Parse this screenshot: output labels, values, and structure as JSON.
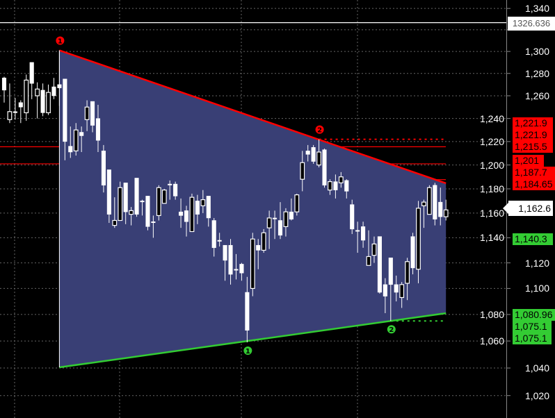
{
  "chart_data": {
    "type": "candlestick",
    "title": "",
    "yscale": "log",
    "ylim": [
      1004,
      1348
    ],
    "grid": true,
    "y_ticks": [
      "1,340",
      "1,300",
      "1,280",
      "1,260",
      "1,240",
      "1,220",
      "1,200",
      "1,180",
      "1,160",
      "1,140",
      "1,120",
      "1,100",
      "1,080",
      "1,060",
      "1,040",
      "1,020"
    ],
    "y_tick_values": [
      1340,
      1300,
      1280,
      1260,
      1240,
      1220,
      1200,
      1180,
      1160,
      1140,
      1120,
      1100,
      1080,
      1060,
      1040,
      1020
    ],
    "candle_fields": [
      "open",
      "high",
      "low",
      "close"
    ],
    "candles": [
      [
        1276,
        1277,
        1254,
        1265
      ],
      [
        1239,
        1271,
        1236,
        1246
      ],
      [
        1246,
        1258,
        1239,
        1245
      ],
      [
        1254,
        1256,
        1236,
        1250
      ],
      [
        1245,
        1279,
        1238,
        1274
      ],
      [
        1290,
        1290,
        1257,
        1271
      ],
      [
        1260,
        1272,
        1240,
        1266
      ],
      [
        1265,
        1271,
        1242,
        1245
      ],
      [
        1245,
        1270,
        1243,
        1263
      ],
      [
        1268,
        1276,
        1257,
        1260
      ],
      [
        1270,
        1301,
        1251,
        1267
      ],
      [
        1275,
        1275,
        1204,
        1220
      ],
      [
        1216,
        1233,
        1206,
        1211
      ],
      [
        1212,
        1236,
        1208,
        1230
      ],
      [
        1228,
        1233,
        1211,
        1225
      ],
      [
        1239,
        1256,
        1229,
        1250
      ],
      [
        1255,
        1255,
        1228,
        1234
      ],
      [
        1240,
        1252,
        1211,
        1221
      ],
      [
        1212,
        1217,
        1177,
        1183
      ],
      [
        1196,
        1196,
        1152,
        1159
      ],
      [
        1150,
        1173,
        1148,
        1154
      ],
      [
        1154,
        1186,
        1154,
        1181
      ],
      [
        1185,
        1185,
        1151,
        1161
      ],
      [
        1159,
        1165,
        1150,
        1162
      ],
      [
        1189,
        1189,
        1157,
        1159
      ],
      [
        1170,
        1171,
        1158,
        1170
      ],
      [
        1174,
        1174,
        1146,
        1149
      ],
      [
        1153,
        1158,
        1140,
        1153
      ],
      [
        1158,
        1183,
        1154,
        1181
      ],
      [
        1168,
        1180,
        1168,
        1179
      ],
      [
        1184,
        1187,
        1171,
        1184
      ],
      [
        1184,
        1186,
        1171,
        1174
      ],
      [
        1161,
        1172,
        1148,
        1158
      ],
      [
        1162,
        1166,
        1141,
        1153
      ],
      [
        1145,
        1176,
        1145,
        1173
      ],
      [
        1170,
        1175,
        1151,
        1159
      ],
      [
        1166,
        1179,
        1160,
        1171
      ],
      [
        1174,
        1174,
        1149,
        1156
      ],
      [
        1154,
        1156,
        1125,
        1132
      ],
      [
        1138,
        1144,
        1133,
        1138
      ],
      [
        1134,
        1134,
        1106,
        1122
      ],
      [
        1134,
        1139,
        1103,
        1111
      ],
      [
        1115,
        1127,
        1107,
        1115
      ],
      [
        1119,
        1120,
        1106,
        1112
      ],
      [
        1097,
        1109,
        1059,
        1068
      ],
      [
        1100,
        1144,
        1094,
        1139
      ],
      [
        1134,
        1139,
        1115,
        1130
      ],
      [
        1130,
        1147,
        1128,
        1144
      ],
      [
        1148,
        1162,
        1131,
        1156
      ],
      [
        1156,
        1162,
        1139,
        1156
      ],
      [
        1154,
        1169,
        1139,
        1142
      ],
      [
        1149,
        1164,
        1141,
        1161
      ],
      [
        1161,
        1172,
        1154,
        1155
      ],
      [
        1161,
        1176,
        1158,
        1175
      ],
      [
        1188,
        1212,
        1178,
        1202
      ],
      [
        1212,
        1217,
        1203,
        1209
      ],
      [
        1215,
        1217,
        1201,
        1203
      ],
      [
        1200,
        1221.9,
        1198,
        1211
      ],
      [
        1213,
        1214,
        1181,
        1183
      ],
      [
        1179,
        1188,
        1175,
        1186
      ],
      [
        1186,
        1192,
        1172,
        1179
      ],
      [
        1185,
        1194,
        1181,
        1190
      ],
      [
        1187,
        1188,
        1172,
        1178
      ],
      [
        1167,
        1171,
        1143,
        1147
      ],
      [
        1146,
        1153,
        1128,
        1146
      ],
      [
        1149,
        1153,
        1132,
        1138
      ],
      [
        1118,
        1146,
        1118,
        1125
      ],
      [
        1126,
        1141,
        1120,
        1135
      ],
      [
        1141,
        1141,
        1096,
        1097
      ],
      [
        1103,
        1108,
        1081,
        1094
      ],
      [
        1124,
        1124,
        1075.1,
        1103
      ],
      [
        1103,
        1110,
        1090,
        1097
      ],
      [
        1093,
        1105,
        1085,
        1103
      ],
      [
        1104,
        1124,
        1091,
        1121
      ],
      [
        1141,
        1144,
        1111,
        1116
      ],
      [
        1115,
        1170,
        1104,
        1164
      ],
      [
        1166,
        1171,
        1148,
        1169
      ],
      [
        1159,
        1183,
        1159,
        1181
      ],
      [
        1183,
        1185,
        1150,
        1155
      ],
      [
        1169,
        1181,
        1150,
        1157
      ],
      [
        1157,
        1171,
        1154,
        1162.6
      ]
    ],
    "triangle": {
      "upper": {
        "from": {
          "candle": 10,
          "price": 1301
        },
        "to": {
          "candle": 80,
          "price": 1184.65
        },
        "color": "#ff0000"
      },
      "lower": {
        "from": {
          "candle": 10,
          "price": 1040.5
        },
        "to": {
          "candle": 80,
          "price": 1080.96
        },
        "color": "#33cc33"
      },
      "fill": "#393f75"
    },
    "levels": [
      {
        "price": 1326.636,
        "color": "#ffffff",
        "style": "solid",
        "from_candle": null
      },
      {
        "price": 1215.5,
        "color": "#ff0000",
        "style": "solid",
        "from_candle": null
      },
      {
        "price": 1201,
        "color": "#ff0000",
        "style": "solid",
        "from_candle": null
      },
      {
        "price": 1187.7,
        "color": "#ff0000",
        "style": "solid",
        "from_candle": 78
      },
      {
        "price": 1221.9,
        "color": "#ff0000",
        "style": "dotted",
        "from_candle": 57
      },
      {
        "price": 1075.1,
        "color": "#33cc33",
        "style": "dotted",
        "from_candle": 70
      }
    ],
    "markers": [
      {
        "label": "1",
        "color": "#ff0000",
        "candle": 10,
        "position": "above"
      },
      {
        "label": "2",
        "color": "#ff0000",
        "candle": 57,
        "position": "above"
      },
      {
        "label": "1",
        "color": "#33cc33",
        "candle": 44,
        "position": "below"
      },
      {
        "label": "2",
        "color": "#33cc33",
        "candle": 70,
        "position": "below"
      }
    ]
  },
  "price_labels": {
    "reference": "1326.636",
    "last_price": "1,162.6",
    "red_group_1": [
      "1,221.9",
      "1,221.9",
      "1,215.5"
    ],
    "red_group_2": [
      "1,201",
      "1,187.7",
      "1,184.65"
    ],
    "green_single": "1,140.3",
    "green_group": [
      "1,080.96",
      "1,075.1",
      "1,075.1"
    ]
  },
  "colors": {
    "background": "#000000",
    "up_body": "#000000",
    "down_body": "#ffffff",
    "wick": "#ffffff",
    "grid": "#666666",
    "red": "#ff0000",
    "green": "#33cc33"
  }
}
